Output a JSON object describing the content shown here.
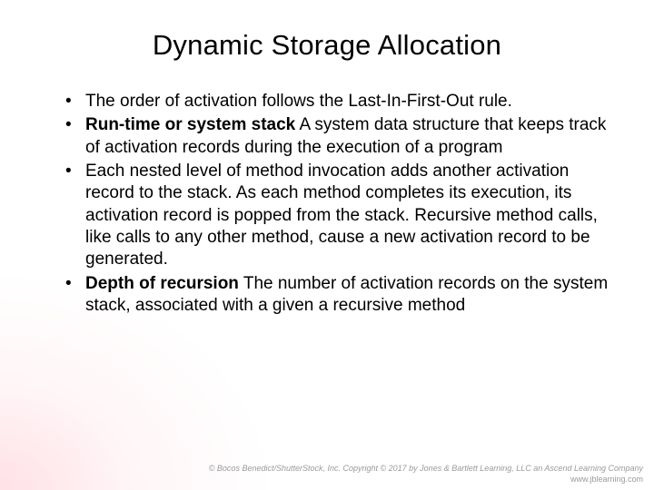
{
  "title": "Dynamic Storage Allocation",
  "bullets": [
    {
      "bold": null,
      "text": "The order of activation follows the Last-In-First-Out rule."
    },
    {
      "bold": "Run-time or system stack",
      "text": "  A system data structure that keeps track of activation records during the execution of a program"
    },
    {
      "bold": null,
      "text": "Each nested level of method invocation adds another activation record to the stack. As each method completes its execution, its activation record is popped from the stack. Recursive method calls, like calls to any other method, cause a new activation record to be generated."
    },
    {
      "bold": "Depth of recursion",
      "text": "  The number of activation records on the system stack, associated with a given a recursive method"
    }
  ],
  "footer": {
    "line1": "© Bocos Benedict/ShutterStock, Inc. Copyright © 2017 by Jones & Bartlett Learning, LLC an Ascend Learning Company",
    "line2": "www.jblearning.com"
  }
}
